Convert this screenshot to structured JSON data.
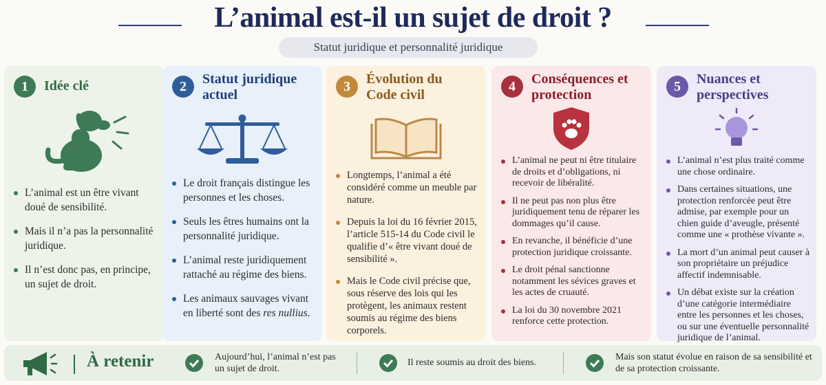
{
  "header": {
    "title": "L’animal est-il un sujet de droit ?",
    "subtitle": "Statut juridique et personnalité juridique"
  },
  "columns": [
    {
      "number": "1",
      "title": "Idée clé",
      "bullets": [
        "L’animal est un être vivant doué de sensibilité.",
        "Mais il n’a pas la personnalité juridique.",
        "Il n’est donc pas, en principe, un sujet de droit."
      ]
    },
    {
      "number": "2",
      "title": "Statut juridique actuel",
      "bullets": [
        "Le droit français distingue les personnes et les choses.",
        "Seuls les êtres humains ont la personnalité juridique.",
        "L’animal reste juridiquement rattaché au régime des biens.",
        [
          "Les animaux sauvages vivant en liberté sont des ",
          "res nullius",
          "."
        ]
      ]
    },
    {
      "number": "3",
      "title": "Évolution du Code civil",
      "bullets": [
        "Longtemps, l’animal a été considéré comme un meuble par nature.",
        "Depuis la loi du 16 février 2015, l’article 515-14 du Code civil le qualifie d’« être vivant doué de sensibilité ».",
        "Mais le Code civil précise que, sous réserve des lois qui les protègent, les animaux restent soumis au régime des biens corporels."
      ]
    },
    {
      "number": "4",
      "title": "Conséquences et protection",
      "bullets": [
        "L’animal ne peut ni être titulaire de droits et d’obligations, ni recevoir de libéralité.",
        "Il ne peut pas non plus être juridiquement tenu de réparer les dommages qu’il cause.",
        "En revanche, il bénéficie d’une protection juridique croissante.",
        "Le droit pénal sanctionne notamment les sévices graves et les actes de cruauté.",
        "La loi du 30 novembre 2021 renforce cette protection."
      ]
    },
    {
      "number": "5",
      "title": "Nuances et perspectives",
      "bullets": [
        "L’animal n’est plus traité comme une chose ordinaire.",
        "Dans certaines situations, une protection renforcée peut être admise, par exemple pour un chien guide d’aveugle, présenté comme une « prothèse vivante ».",
        "La mort d’un animal peut causer à son propriétaire un préjudice affectif indemnisable.",
        "Un débat existe sur la création d’une catégorie intermédiaire entre les personnes et les choses, ou sur une éventuelle personnalité juridique de l’animal."
      ]
    }
  ],
  "summary": {
    "label": "À retenir",
    "items": [
      "Aujourd’hui, l’animal n’est pas un sujet de droit.",
      "Il reste soumis au droit des biens.",
      "Mais son statut évolue en raison de sa sensibilité et de sa protection croissante."
    ]
  }
}
